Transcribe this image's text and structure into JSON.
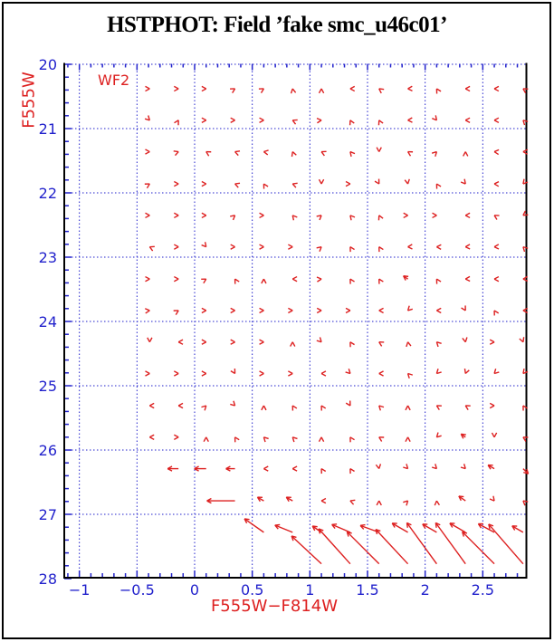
{
  "title": "HSTPHOT: Field ’fake smc_u46c01’",
  "chip_label": "WF2",
  "colors": {
    "arrow_red": "#dd2020",
    "axis_blue": "#2222cc",
    "frame_black": "#000000",
    "background": "#ffffff"
  },
  "chart_data": {
    "type": "quiver",
    "title": "HSTPHOT: Field ’fake smc_u46c01’",
    "xlabel": "F555W−F814W",
    "ylabel": "F555W",
    "annotation": "WF2",
    "x_range": [
      -1.13,
      2.88
    ],
    "y_range": [
      28,
      20
    ],
    "y_axis_inverted": true,
    "grid": true,
    "x_gridlines": [
      -1,
      -0.5,
      0,
      0.5,
      1,
      1.5,
      2,
      2.5
    ],
    "y_gridlines": [
      20,
      21,
      22,
      23,
      24,
      25,
      26,
      27
    ],
    "x_tick_values": [
      -1,
      -0.5,
      0,
      0.5,
      1,
      1.5,
      2,
      2.5
    ],
    "x_tick_labels": [
      "−1",
      "−0.5",
      "0",
      "0.5",
      "1",
      "1.5",
      "2",
      "2.5"
    ],
    "x_minor_tick_step": 0.1,
    "y_tick_values": [
      20,
      21,
      22,
      23,
      24,
      25,
      26,
      27,
      28
    ],
    "y_tick_labels": [
      "20",
      "21",
      "22",
      "23",
      "24",
      "25",
      "26",
      "27",
      "28"
    ],
    "y_minor_tick_step": 0.2,
    "arrow_note": "arrows = [color x, direction deg (0=redward/right, 90=brighter/up), tail length px]; length 0 = chevron head only",
    "rows": [
      {
        "y": 20.38,
        "arrows": [
          [
            -0.39,
            0,
            0
          ],
          [
            -0.14,
            0,
            0
          ],
          [
            0.1,
            0,
            0
          ],
          [
            0.35,
            30,
            0
          ],
          [
            0.6,
            30,
            0
          ],
          [
            0.85,
            100,
            0
          ],
          [
            1.1,
            90,
            0
          ],
          [
            1.35,
            180,
            0
          ],
          [
            1.6,
            145,
            0
          ],
          [
            1.85,
            182,
            0
          ],
          [
            2.1,
            120,
            0
          ],
          [
            2.35,
            180,
            0
          ],
          [
            2.6,
            180,
            0
          ],
          [
            2.85,
            148,
            0
          ]
        ]
      },
      {
        "y": 20.87,
        "arrows": [
          [
            -0.39,
            315,
            0
          ],
          [
            -0.14,
            60,
            0
          ],
          [
            0.1,
            0,
            0
          ],
          [
            0.35,
            0,
            0
          ],
          [
            0.6,
            0,
            0
          ],
          [
            0.85,
            155,
            0
          ],
          [
            1.1,
            5,
            0
          ],
          [
            1.35,
            115,
            0
          ],
          [
            1.6,
            115,
            0
          ],
          [
            1.85,
            182,
            0
          ],
          [
            2.1,
            310,
            0
          ],
          [
            2.35,
            180,
            0
          ],
          [
            2.6,
            180,
            0
          ],
          [
            2.85,
            135,
            0
          ]
        ]
      },
      {
        "y": 21.36,
        "arrows": [
          [
            -0.39,
            0,
            0
          ],
          [
            -0.14,
            20,
            0
          ],
          [
            0.1,
            150,
            0
          ],
          [
            0.35,
            160,
            0
          ],
          [
            0.6,
            170,
            0
          ],
          [
            0.85,
            110,
            0
          ],
          [
            1.1,
            155,
            0
          ],
          [
            1.35,
            130,
            0
          ],
          [
            1.6,
            270,
            0
          ],
          [
            1.85,
            150,
            0
          ],
          [
            2.1,
            45,
            0
          ],
          [
            2.35,
            90,
            0
          ],
          [
            2.6,
            175,
            0
          ],
          [
            2.85,
            178,
            0
          ]
        ]
      },
      {
        "y": 21.86,
        "arrows": [
          [
            -0.39,
            30,
            0
          ],
          [
            -0.14,
            0,
            0
          ],
          [
            0.1,
            0,
            0
          ],
          [
            0.35,
            160,
            0
          ],
          [
            0.6,
            120,
            0
          ],
          [
            0.85,
            160,
            0
          ],
          [
            1.1,
            270,
            0
          ],
          [
            1.35,
            0,
            0
          ],
          [
            1.6,
            300,
            0
          ],
          [
            1.85,
            280,
            0
          ],
          [
            2.1,
            120,
            0
          ],
          [
            2.35,
            310,
            0
          ],
          [
            2.6,
            178,
            0
          ],
          [
            2.85,
            230,
            0
          ]
        ]
      },
      {
        "y": 22.35,
        "arrows": [
          [
            -0.39,
            0,
            0
          ],
          [
            -0.14,
            0,
            0
          ],
          [
            0.1,
            0,
            0
          ],
          [
            0.35,
            40,
            0
          ],
          [
            0.6,
            0,
            0
          ],
          [
            0.85,
            130,
            0
          ],
          [
            1.1,
            40,
            0
          ],
          [
            1.35,
            130,
            0
          ],
          [
            1.6,
            115,
            0
          ],
          [
            1.85,
            0,
            0
          ],
          [
            2.1,
            0,
            0
          ],
          [
            2.35,
            180,
            0
          ],
          [
            2.6,
            150,
            0
          ],
          [
            2.85,
            215,
            0
          ]
        ]
      },
      {
        "y": 22.84,
        "arrows": [
          [
            -0.39,
            155,
            0
          ],
          [
            -0.14,
            0,
            0
          ],
          [
            0.1,
            310,
            0
          ],
          [
            0.35,
            0,
            0
          ],
          [
            0.6,
            0,
            0
          ],
          [
            0.85,
            0,
            0
          ],
          [
            1.1,
            40,
            0
          ],
          [
            1.35,
            120,
            0
          ],
          [
            1.6,
            120,
            0
          ],
          [
            1.85,
            182,
            0
          ],
          [
            2.1,
            178,
            0
          ],
          [
            2.35,
            182,
            0
          ],
          [
            2.6,
            182,
            0
          ],
          [
            2.85,
            135,
            0
          ]
        ]
      },
      {
        "y": 23.34,
        "arrows": [
          [
            -0.39,
            0,
            0
          ],
          [
            -0.14,
            0,
            0
          ],
          [
            0.1,
            30,
            0
          ],
          [
            0.35,
            120,
            0
          ],
          [
            0.6,
            90,
            0
          ],
          [
            0.85,
            180,
            0
          ],
          [
            1.1,
            5,
            0
          ],
          [
            1.35,
            120,
            0
          ],
          [
            1.6,
            120,
            0
          ],
          [
            1.85,
            145,
            6
          ],
          [
            2.1,
            120,
            0
          ],
          [
            2.35,
            182,
            0
          ],
          [
            2.6,
            180,
            0
          ],
          [
            2.85,
            182,
            0
          ]
        ]
      },
      {
        "y": 23.83,
        "arrows": [
          [
            -0.39,
            5,
            0
          ],
          [
            -0.14,
            30,
            0
          ],
          [
            0.1,
            0,
            0
          ],
          [
            0.35,
            0,
            0
          ],
          [
            0.6,
            0,
            0
          ],
          [
            0.85,
            0,
            0
          ],
          [
            1.1,
            0,
            0
          ],
          [
            1.35,
            0,
            0
          ],
          [
            1.6,
            180,
            0
          ],
          [
            1.85,
            225,
            0
          ],
          [
            2.1,
            180,
            0
          ],
          [
            2.35,
            300,
            0
          ],
          [
            2.6,
            120,
            0
          ],
          [
            2.85,
            180,
            0
          ]
        ]
      },
      {
        "y": 24.32,
        "arrows": [
          [
            -0.39,
            270,
            0
          ],
          [
            -0.14,
            180,
            0
          ],
          [
            0.1,
            0,
            0
          ],
          [
            0.35,
            0,
            0
          ],
          [
            0.6,
            0,
            0
          ],
          [
            0.85,
            90,
            0
          ],
          [
            1.1,
            315,
            0
          ],
          [
            1.35,
            120,
            0
          ],
          [
            1.6,
            150,
            0
          ],
          [
            1.85,
            100,
            0
          ],
          [
            2.1,
            135,
            0
          ],
          [
            2.35,
            280,
            0
          ],
          [
            2.6,
            0,
            0
          ],
          [
            2.85,
            290,
            0
          ]
        ]
      },
      {
        "y": 24.81,
        "arrows": [
          [
            -0.39,
            0,
            0
          ],
          [
            -0.14,
            0,
            0
          ],
          [
            0.1,
            0,
            0
          ],
          [
            0.35,
            300,
            0
          ],
          [
            0.6,
            0,
            0
          ],
          [
            0.85,
            0,
            0
          ],
          [
            1.1,
            180,
            0
          ],
          [
            1.35,
            315,
            0
          ],
          [
            1.6,
            180,
            0
          ],
          [
            1.85,
            135,
            0
          ],
          [
            2.1,
            225,
            0
          ],
          [
            2.35,
            250,
            0
          ],
          [
            2.6,
            225,
            0
          ],
          [
            2.85,
            230,
            0
          ]
        ]
      },
      {
        "y": 25.31,
        "arrows": [
          [
            -0.39,
            180,
            0
          ],
          [
            -0.14,
            180,
            0
          ],
          [
            0.1,
            45,
            0
          ],
          [
            0.35,
            315,
            0
          ],
          [
            0.6,
            90,
            0
          ],
          [
            0.85,
            120,
            0
          ],
          [
            1.1,
            120,
            0
          ],
          [
            1.35,
            300,
            0
          ],
          [
            1.6,
            135,
            0
          ],
          [
            1.85,
            90,
            0
          ],
          [
            2.1,
            150,
            0
          ],
          [
            2.35,
            150,
            0
          ],
          [
            2.6,
            0,
            0
          ],
          [
            2.85,
            120,
            0
          ]
        ]
      },
      {
        "y": 25.8,
        "arrows": [
          [
            -0.39,
            180,
            0
          ],
          [
            -0.14,
            0,
            0
          ],
          [
            0.1,
            90,
            0
          ],
          [
            0.35,
            120,
            0
          ],
          [
            0.6,
            135,
            0
          ],
          [
            0.85,
            135,
            0
          ],
          [
            1.1,
            90,
            0
          ],
          [
            1.35,
            120,
            0
          ],
          [
            1.6,
            150,
            0
          ],
          [
            1.85,
            90,
            0
          ],
          [
            2.1,
            225,
            0
          ],
          [
            2.35,
            145,
            6
          ],
          [
            2.6,
            270,
            0
          ],
          [
            2.85,
            150,
            0
          ]
        ]
      },
      {
        "y": 26.29,
        "arrows": [
          [
            -0.14,
            180,
            12
          ],
          [
            0.1,
            180,
            13
          ],
          [
            0.35,
            180,
            10
          ],
          [
            0.6,
            180,
            0
          ],
          [
            0.85,
            180,
            0
          ],
          [
            1.1,
            120,
            0
          ],
          [
            1.35,
            120,
            0
          ],
          [
            1.6,
            280,
            0
          ],
          [
            1.85,
            315,
            0
          ],
          [
            2.1,
            315,
            0
          ],
          [
            2.35,
            315,
            0
          ],
          [
            2.6,
            150,
            8
          ],
          [
            2.85,
            315,
            8
          ]
        ]
      },
      {
        "y": 26.79,
        "arrows": [
          [
            0.35,
            180,
            31
          ],
          [
            0.6,
            150,
            8
          ],
          [
            0.85,
            150,
            8
          ],
          [
            1.1,
            180,
            0
          ],
          [
            1.35,
            160,
            0
          ],
          [
            1.6,
            90,
            0
          ],
          [
            1.85,
            45,
            0
          ],
          [
            2.1,
            95,
            0
          ],
          [
            2.35,
            145,
            9
          ],
          [
            2.6,
            310,
            0
          ],
          [
            2.85,
            140,
            0
          ]
        ]
      },
      {
        "y": 27.28,
        "arrows": [
          [
            0.6,
            145,
            26
          ],
          [
            0.85,
            158,
            21
          ],
          [
            1.1,
            145,
            12
          ],
          [
            1.35,
            157,
            22
          ],
          [
            1.6,
            160,
            22
          ],
          [
            1.85,
            150,
            20
          ],
          [
            2.1,
            150,
            18
          ],
          [
            2.35,
            150,
            20
          ],
          [
            2.6,
            152,
            20
          ],
          [
            2.85,
            150,
            14
          ]
        ]
      },
      {
        "y": 27.77,
        "arrows": [
          [
            1.1,
            137,
            45
          ],
          [
            1.35,
            132,
            52
          ],
          [
            1.6,
            135,
            50
          ],
          [
            1.85,
            133,
            52
          ],
          [
            2.1,
            126,
            56
          ],
          [
            2.35,
            126,
            56
          ],
          [
            2.6,
            135,
            50
          ],
          [
            2.85,
            131,
            58
          ]
        ]
      }
    ]
  }
}
